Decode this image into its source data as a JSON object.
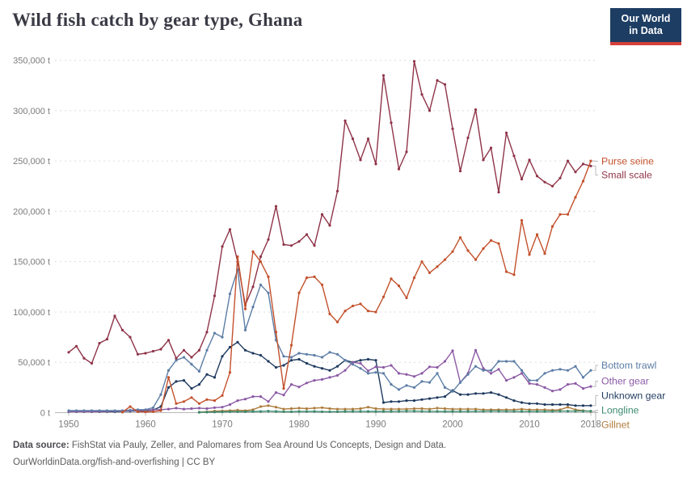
{
  "header": {
    "title": "Wild fish catch by gear type, Ghana",
    "logo_line1": "Our World",
    "logo_line2": "in Data"
  },
  "footer": {
    "source_label": "Data source:",
    "source_text": "FishStat via Pauly, Zeller, and Palomares from Sea Around Us Concepts, Design and Data.",
    "url_text": "OurWorldinData.org/fish-and-overfishing",
    "separator": "|",
    "license": "CC BY"
  },
  "colors": {
    "grid": "#dcdcdc",
    "zero_line": "#b8b8b8",
    "tick_text": "#7c7c7c",
    "connector": "#bbbbbb",
    "logo_bg": "#1d3d63",
    "logo_red": "#d4403a"
  },
  "chart_data": {
    "type": "line",
    "unit": "t",
    "grid": "dashed horizontal",
    "legend_position": "right",
    "ylim": [
      0,
      350000
    ],
    "yticks": [
      0,
      50000,
      100000,
      150000,
      200000,
      250000,
      300000,
      350000
    ],
    "xticks": [
      1950,
      1960,
      1970,
      1980,
      1990,
      2000,
      2010,
      2018
    ],
    "x": [
      1950,
      1951,
      1952,
      1953,
      1954,
      1955,
      1956,
      1957,
      1958,
      1959,
      1960,
      1961,
      1962,
      1963,
      1964,
      1965,
      1966,
      1967,
      1968,
      1969,
      1970,
      1971,
      1972,
      1973,
      1974,
      1975,
      1976,
      1977,
      1978,
      1979,
      1980,
      1981,
      1982,
      1983,
      1984,
      1985,
      1986,
      1987,
      1988,
      1989,
      1990,
      1991,
      1992,
      1993,
      1994,
      1995,
      1996,
      1997,
      1998,
      1999,
      2000,
      2001,
      2002,
      2003,
      2004,
      2005,
      2006,
      2007,
      2008,
      2009,
      2010,
      2011,
      2012,
      2013,
      2014,
      2015,
      2016,
      2017,
      2018
    ],
    "series": [
      {
        "id": "purse-seine",
        "name": "Purse seine",
        "color": "#C3512C",
        "values": [
          null,
          null,
          null,
          null,
          null,
          null,
          null,
          500,
          6000,
          1000,
          800,
          1000,
          2000,
          35000,
          9000,
          11000,
          15000,
          9000,
          13000,
          12000,
          17000,
          40000,
          155000,
          103000,
          160000,
          150000,
          135000,
          80000,
          24000,
          67000,
          119000,
          134000,
          135000,
          127000,
          98000,
          90000,
          101000,
          106000,
          108000,
          101000,
          100000,
          115000,
          133000,
          126000,
          114000,
          134000,
          150000,
          139000,
          145000,
          152000,
          160000,
          174000,
          161000,
          152000,
          163000,
          171000,
          168000,
          140000,
          137000,
          191000,
          157000,
          177000,
          158000,
          185000,
          197000,
          197000,
          214000,
          230000,
          250000
        ]
      },
      {
        "id": "small-scale",
        "name": "Small scale",
        "color": "#8F3449",
        "values": [
          60000,
          66000,
          54000,
          49000,
          69000,
          73000,
          96000,
          82000,
          75000,
          58000,
          59000,
          61000,
          63000,
          72000,
          54000,
          62000,
          55000,
          62000,
          80000,
          116000,
          165000,
          182000,
          150000,
          107000,
          125000,
          155000,
          172000,
          205000,
          167000,
          166000,
          170000,
          177000,
          166000,
          197000,
          186000,
          220000,
          290000,
          272000,
          251000,
          272000,
          247000,
          335000,
          288000,
          242000,
          259000,
          349000,
          316000,
          300000,
          330000,
          326000,
          282000,
          240000,
          273000,
          301000,
          251000,
          263000,
          219000,
          278000,
          255000,
          232000,
          251000,
          235000,
          229000,
          225000,
          233000,
          250000,
          239000,
          247000,
          245000
        ]
      },
      {
        "id": "bottom-trawl",
        "name": "Bottom trawl",
        "color": "#5C7DA6",
        "values": [
          2000,
          2000,
          2000,
          2000,
          2000,
          2000,
          2000,
          2000,
          2500,
          3000,
          3000,
          5000,
          18000,
          42000,
          52000,
          55000,
          48000,
          41000,
          62000,
          79000,
          75000,
          118000,
          142000,
          82000,
          105000,
          127000,
          119000,
          72000,
          56000,
          55000,
          59000,
          58000,
          57000,
          55000,
          60000,
          58000,
          52000,
          48000,
          44000,
          39000,
          40000,
          39000,
          28000,
          23000,
          27000,
          25000,
          31000,
          30000,
          39000,
          25000,
          21000,
          30000,
          38000,
          46000,
          42000,
          42000,
          51000,
          51000,
          51000,
          42000,
          32000,
          32000,
          39000,
          42000,
          43000,
          42000,
          46000,
          35000,
          42000
        ]
      },
      {
        "id": "other-gear",
        "name": "Other gear",
        "color": "#8C5AA5",
        "values": [
          1000,
          1000,
          1000,
          1000,
          1200,
          1200,
          1500,
          1500,
          2000,
          2000,
          2500,
          3000,
          3000,
          3500,
          4500,
          3500,
          4000,
          4500,
          4000,
          5000,
          5500,
          8000,
          12000,
          13500,
          16000,
          16000,
          11000,
          20000,
          17500,
          28000,
          25500,
          29500,
          32000,
          33000,
          35000,
          37000,
          42000,
          50000,
          49000,
          41500,
          45500,
          45000,
          47000,
          39000,
          38000,
          36000,
          39000,
          45500,
          45000,
          51000,
          61500,
          30000,
          39000,
          62000,
          44000,
          39000,
          43000,
          32000,
          35000,
          39000,
          29000,
          28000,
          25000,
          21500,
          23000,
          28000,
          29000,
          24000,
          26000
        ]
      },
      {
        "id": "unknown-gear",
        "name": "Unknown gear",
        "color": "#1F3A5F",
        "values": [
          1000,
          1000,
          1000,
          1000,
          1000,
          1000,
          1000,
          1200,
          1500,
          1500,
          2000,
          2500,
          6000,
          25000,
          31000,
          32000,
          24000,
          28000,
          38000,
          35000,
          56000,
          65000,
          70000,
          62000,
          59000,
          57000,
          51000,
          45000,
          47000,
          52000,
          53000,
          49000,
          46000,
          44000,
          42000,
          46000,
          52000,
          50000,
          52000,
          53000,
          52000,
          10000,
          11000,
          11000,
          12000,
          12000,
          13000,
          14000,
          15000,
          16000,
          22000,
          18000,
          18000,
          19000,
          19000,
          20000,
          18000,
          15000,
          12000,
          10000,
          9000,
          9000,
          8000,
          8000,
          8000,
          8000,
          7000,
          7000,
          7000
        ]
      },
      {
        "id": "longline",
        "name": "Longline",
        "color": "#3C8A6E",
        "values": [
          null,
          null,
          null,
          null,
          null,
          null,
          null,
          null,
          null,
          null,
          null,
          null,
          null,
          null,
          null,
          null,
          null,
          300,
          500,
          600,
          800,
          1000,
          1000,
          1000,
          1200,
          1200,
          1500,
          1200,
          1000,
          1000,
          1200,
          1200,
          1200,
          1000,
          1000,
          1000,
          1200,
          1300,
          1300,
          1200,
          1200,
          1200,
          1300,
          1400,
          1500,
          1500,
          1400,
          1300,
          1300,
          1200,
          1200,
          1300,
          1300,
          1400,
          1400,
          1500,
          1500,
          1400,
          1400,
          1300,
          1300,
          1300,
          1400,
          1400,
          1500,
          1500,
          1500,
          1500,
          1500
        ]
      },
      {
        "id": "gillnet",
        "name": "Gillnet",
        "color": "#AE7C3C",
        "values": [
          null,
          null,
          null,
          null,
          null,
          null,
          null,
          null,
          null,
          null,
          null,
          null,
          null,
          null,
          null,
          null,
          null,
          500,
          1000,
          1500,
          1800,
          2000,
          2500,
          2000,
          3000,
          6000,
          7000,
          5500,
          3500,
          4000,
          4500,
          4000,
          4500,
          5000,
          4000,
          3500,
          3500,
          3500,
          4000,
          5500,
          4000,
          3500,
          3500,
          3500,
          3500,
          4000,
          4000,
          3500,
          4500,
          4000,
          3500,
          3500,
          3500,
          3500,
          3000,
          3000,
          3000,
          3000,
          3000,
          3500,
          3000,
          3000,
          3000,
          2500,
          3000,
          5500,
          3000,
          2000,
          1200
        ]
      }
    ]
  }
}
